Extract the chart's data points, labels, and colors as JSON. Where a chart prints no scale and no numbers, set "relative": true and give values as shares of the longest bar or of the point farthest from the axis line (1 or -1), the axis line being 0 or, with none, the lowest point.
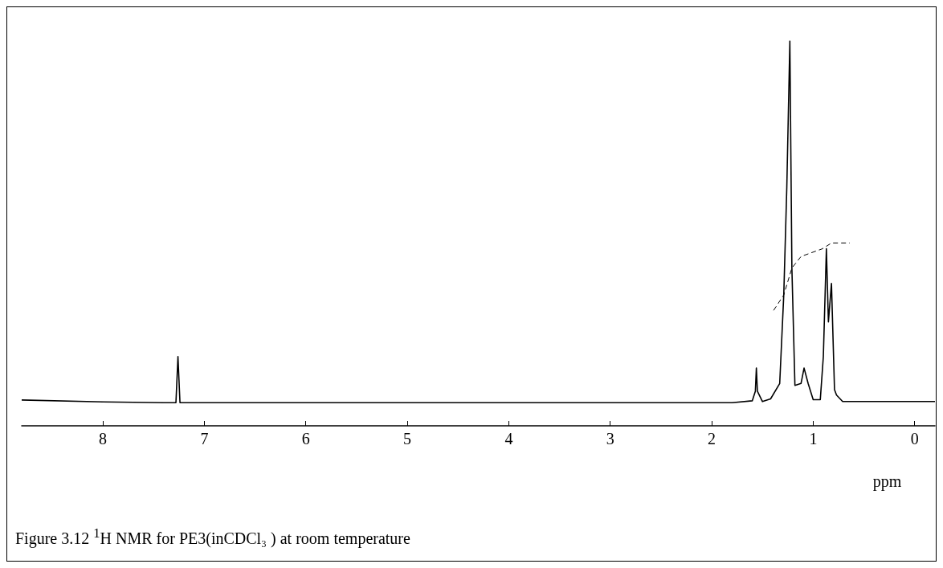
{
  "chart_data": {
    "type": "line",
    "relative": true,
    "xlabel": "ppm",
    "xlim": [
      8.8,
      -0.2
    ],
    "xticks": [
      8,
      7,
      6,
      5,
      4,
      3,
      2,
      1,
      0
    ],
    "grid": false,
    "marker": "none",
    "annotations": [
      "Figure 3.12  $^{1}$H NMR for PE3(inCDCl₃ ) at room temperature"
    ],
    "series": [
      {
        "color": "#000000",
        "line_style": "solid",
        "x": [
          8.8,
          8.0,
          7.4,
          7.28,
          7.26,
          7.24,
          7.1,
          5.0,
          3.0,
          1.8,
          1.6,
          1.57,
          1.56,
          1.55,
          1.5,
          1.42,
          1.33,
          1.29,
          1.26,
          1.23,
          1.21,
          1.18,
          1.12,
          1.09,
          1.05,
          1.0,
          0.93,
          0.9,
          0.87,
          0.85,
          0.82,
          0.79,
          0.77,
          0.71,
          0.3,
          -0.2
        ],
        "values": [
          0.067,
          0.062,
          0.06,
          0.06,
          0.18,
          0.06,
          0.06,
          0.06,
          0.06,
          0.06,
          0.065,
          0.09,
          0.15,
          0.09,
          0.063,
          0.07,
          0.11,
          0.34,
          0.62,
          1.0,
          0.41,
          0.105,
          0.11,
          0.15,
          0.11,
          0.068,
          0.068,
          0.18,
          0.46,
          0.27,
          0.37,
          0.094,
          0.08,
          0.063,
          0.063,
          0.063
        ]
      },
      {
        "color": "#000000",
        "line_style": "dashed",
        "x": [
          1.39,
          1.29,
          1.21,
          1.12,
          0.91,
          0.82,
          0.64
        ],
        "values": [
          0.3,
          0.34,
          0.41,
          0.44,
          0.46,
          0.475,
          0.475
        ]
      }
    ]
  }
}
